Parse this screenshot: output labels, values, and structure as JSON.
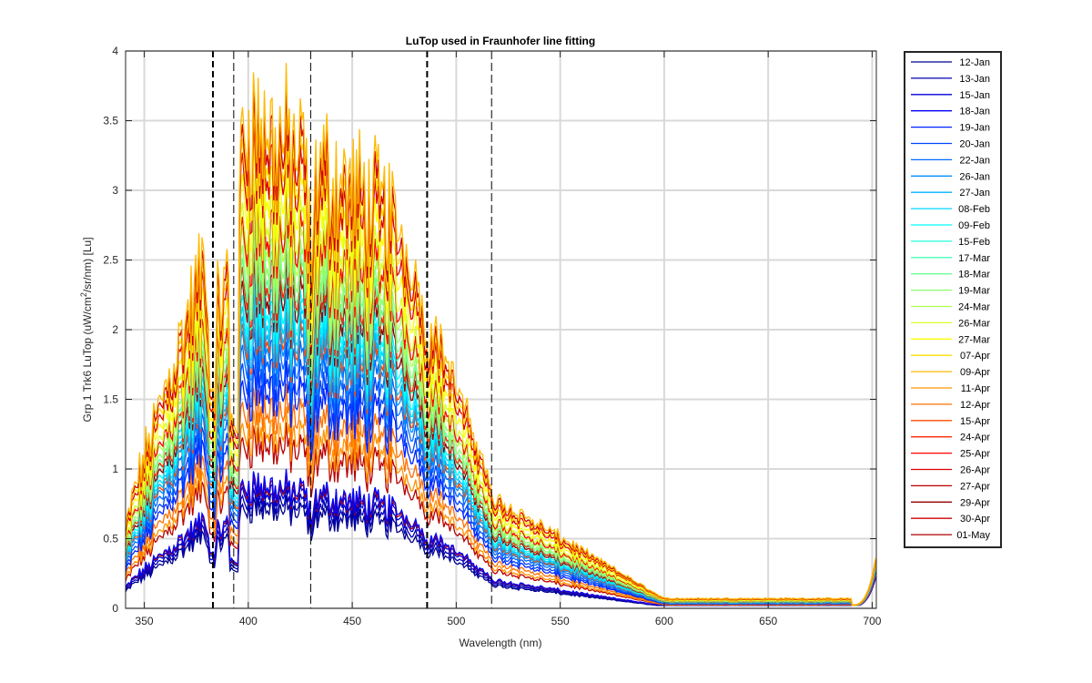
{
  "chart_data": {
    "type": "line",
    "title": "LuTop used in Fraunhofer line fitting",
    "xlabel": "Wavelength (nm)",
    "ylabel_prefix": "Grp 1 Trk6 LuTop (uW/cm",
    "ylabel_superscript": "2",
    "ylabel_suffix": "/sr/nm) [Lu]",
    "xlim": [
      341,
      702
    ],
    "ylim": [
      0,
      4
    ],
    "xticks": [
      350,
      400,
      450,
      500,
      550,
      600,
      650,
      700
    ],
    "yticks": [
      0,
      0.5,
      1,
      1.5,
      2,
      2.5,
      3,
      3.5,
      4
    ],
    "xtick_labels": [
      "350",
      "400",
      "450",
      "500",
      "550",
      "600",
      "650",
      "700"
    ],
    "ytick_labels": [
      "0",
      "0.5",
      "1",
      "1.5",
      "2",
      "2.5",
      "3",
      "3.5",
      "4"
    ],
    "grid": true,
    "legend_position": "outside-right",
    "reference_lines": [
      {
        "x": 383,
        "style": "bold-dashed"
      },
      {
        "x": 393,
        "style": "dashed"
      },
      {
        "x": 430,
        "style": "dashed"
      },
      {
        "x": 486,
        "style": "bold-dashed"
      },
      {
        "x": 517,
        "style": "dashed"
      }
    ],
    "series": [
      {
        "name": "12-Jan",
        "color": "#00008f",
        "peak": 0.73
      },
      {
        "name": "13-Jan",
        "color": "#0000b3",
        "peak": 0.79
      },
      {
        "name": "15-Jan",
        "color": "#0000d8",
        "peak": 0.85
      },
      {
        "name": "18-Jan",
        "color": "#0000fc",
        "peak": 0.9
      },
      {
        "name": "19-Jan",
        "color": "#0022ff",
        "peak": 1.6
      },
      {
        "name": "20-Jan",
        "color": "#0046ff",
        "peak": 1.72
      },
      {
        "name": "22-Jan",
        "color": "#006bff",
        "peak": 1.85
      },
      {
        "name": "26-Jan",
        "color": "#008fff",
        "peak": 1.95
      },
      {
        "name": "27-Jan",
        "color": "#00b3ff",
        "peak": 2.05
      },
      {
        "name": "08-Feb",
        "color": "#00d8ff",
        "peak": 2.12
      },
      {
        "name": "09-Feb",
        "color": "#00fcff",
        "peak": 2.2
      },
      {
        "name": "15-Feb",
        "color": "#22ffdd",
        "peak": 2.3
      },
      {
        "name": "17-Mar",
        "color": "#46ffb9",
        "peak": 2.38
      },
      {
        "name": "18-Mar",
        "color": "#6bff94",
        "peak": 2.46
      },
      {
        "name": "19-Mar",
        "color": "#8fff70",
        "peak": 2.55
      },
      {
        "name": "24-Mar",
        "color": "#b3ff4c",
        "peak": 2.68
      },
      {
        "name": "26-Mar",
        "color": "#d8ff27",
        "peak": 2.85
      },
      {
        "name": "27-Mar",
        "color": "#fcff03",
        "peak": 3.05
      },
      {
        "name": "07-Apr",
        "color": "#ffdd00",
        "peak": 3.3
      },
      {
        "name": "09-Apr",
        "color": "#ffb900",
        "peak": 3.52
      },
      {
        "name": "11-Apr",
        "color": "#ff9400",
        "peak": 1.3
      },
      {
        "name": "12-Apr",
        "color": "#ff7000",
        "peak": 1.45
      },
      {
        "name": "15-Apr",
        "color": "#ff4c00",
        "peak": 2.0
      },
      {
        "name": "24-Apr",
        "color": "#ff2700",
        "peak": 2.4
      },
      {
        "name": "25-Apr",
        "color": "#ff0300",
        "peak": 2.75
      },
      {
        "name": "26-Apr",
        "color": "#dd0000",
        "peak": 3.2
      },
      {
        "name": "27-Apr",
        "color": "#b90000",
        "peak": 1.2
      },
      {
        "name": "29-Apr",
        "color": "#940000",
        "peak": 2.3
      },
      {
        "name": "30-Apr",
        "color": "#d00000",
        "peak": 3.4
      },
      {
        "name": "01-May",
        "color": "#b00000",
        "peak": 0.88
      }
    ]
  }
}
